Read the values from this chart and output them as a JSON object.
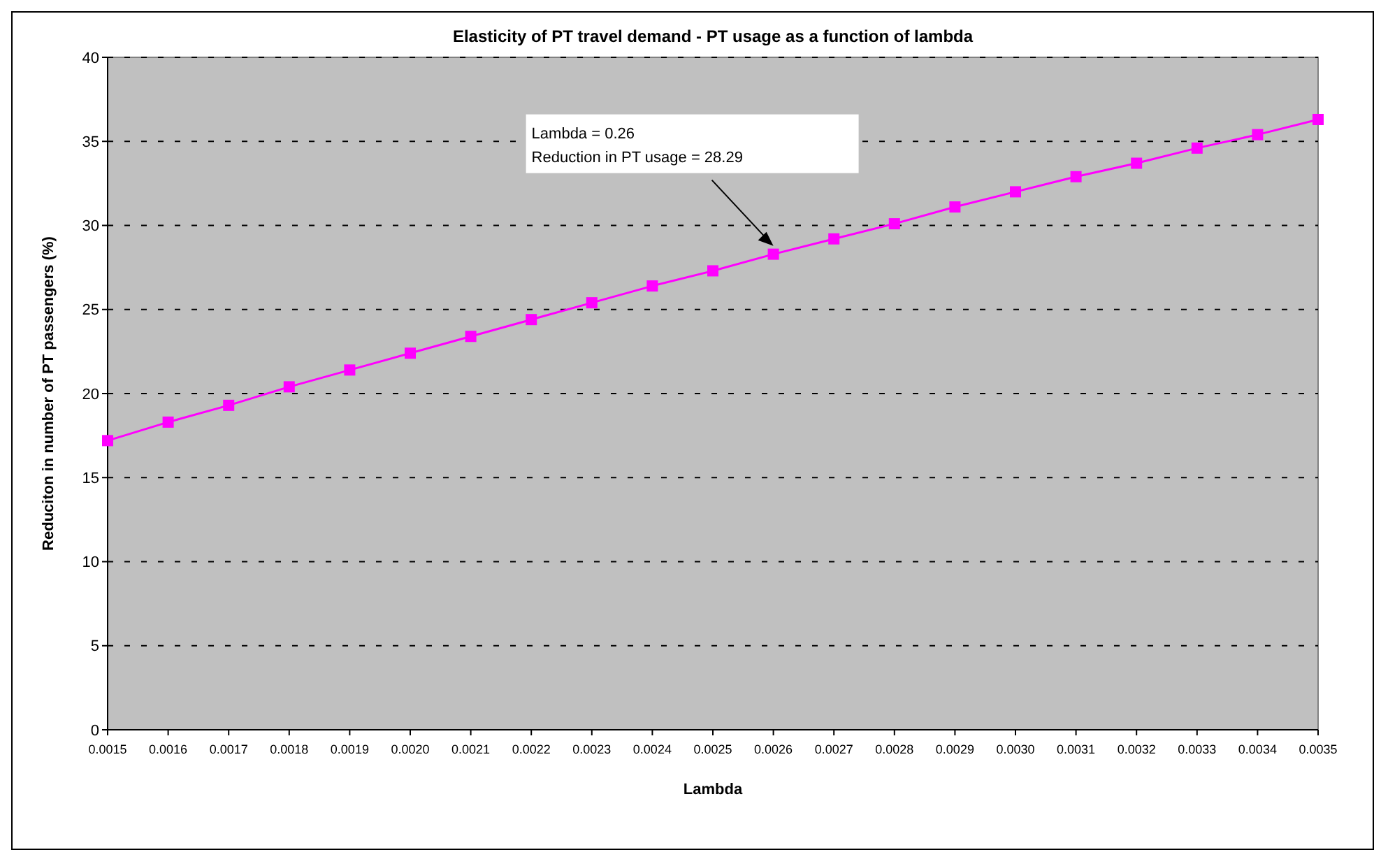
{
  "chart_data": {
    "type": "line",
    "title": "Elasticity of PT travel demand - PT usage as a function of lambda",
    "xlabel": "Lambda",
    "ylabel": "Reduciton in number of PT passengers (%)",
    "categories": [
      "0.0015",
      "0.0016",
      "0.0017",
      "0.0018",
      "0.0019",
      "0.0020",
      "0.0021",
      "0.0022",
      "0.0023",
      "0.0024",
      "0.0025",
      "0.0026",
      "0.0027",
      "0.0028",
      "0.0029",
      "0.0030",
      "0.0031",
      "0.0032",
      "0.0033",
      "0.0034",
      "0.0035"
    ],
    "series": [
      {
        "color": "#ff00ff",
        "values": [
          17.2,
          18.3,
          19.3,
          20.4,
          21.4,
          22.4,
          23.4,
          24.4,
          25.4,
          26.4,
          27.3,
          28.29,
          29.2,
          30.1,
          31.1,
          32.0,
          32.9,
          33.7,
          34.6,
          35.4,
          36.3
        ]
      }
    ],
    "ylim": [
      0,
      40
    ],
    "yticks": [
      0,
      5,
      10,
      15,
      20,
      25,
      30,
      35,
      40
    ],
    "grid": "y",
    "marker": "square",
    "line_style": "solid",
    "annotations": [
      {
        "text": "Lambda = 0.26\nReduction in PT usage = 28.29",
        "x": "0.0026",
        "y": 28.29
      }
    ]
  }
}
